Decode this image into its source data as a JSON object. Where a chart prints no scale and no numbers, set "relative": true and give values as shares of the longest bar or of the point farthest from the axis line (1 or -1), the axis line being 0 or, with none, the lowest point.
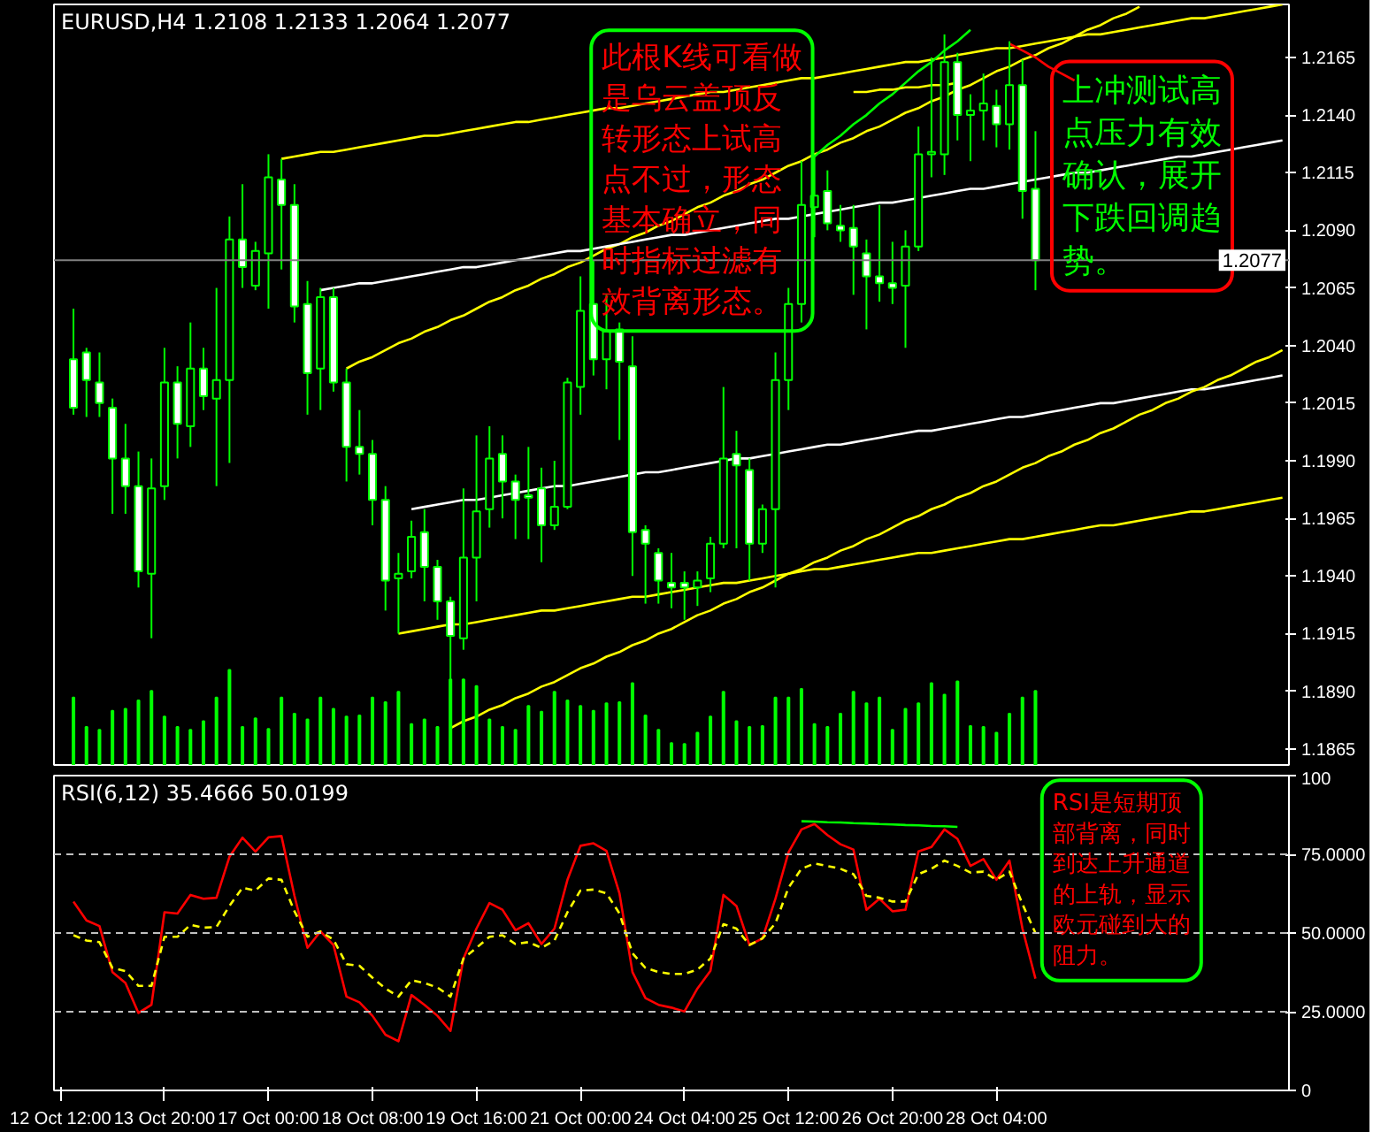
{
  "chart_data": [
    {
      "type": "candlestick",
      "title": "EURUSD,H4  1.2108 1.2133 1.2064 1.2077",
      "color": "#00ff00",
      "ohlc": [
        null,
        [
          1.2034,
          1.2056,
          1.201,
          1.2013
        ],
        [
          1.2037,
          1.2039,
          1.2009,
          1.2025
        ],
        [
          1.2024,
          1.2037,
          1.2009,
          1.2015
        ],
        [
          1.2013,
          1.2017,
          1.1967,
          1.1991
        ],
        [
          1.1991,
          1.2006,
          1.1967,
          1.1979
        ],
        [
          1.1979,
          1.1994,
          1.1935,
          1.1942
        ],
        [
          1.1941,
          1.1991,
          1.1913,
          1.1978
        ],
        [
          1.1979,
          1.2039,
          1.1973,
          1.2024
        ],
        [
          1.2024,
          1.2031,
          1.1991,
          1.2006
        ],
        [
          1.2005,
          1.205,
          1.1996,
          1.203
        ],
        [
          1.203,
          1.2039,
          1.2012,
          1.2018
        ],
        [
          1.2017,
          1.2065,
          1.1979,
          1.2025
        ],
        [
          1.2025,
          1.2096,
          1.1989,
          1.2086
        ],
        [
          1.2086,
          1.211,
          1.2065,
          1.2074
        ],
        [
          1.2066,
          1.2085,
          1.2064,
          1.2081
        ],
        [
          1.208,
          1.2123,
          1.2056,
          1.2113
        ],
        [
          1.2112,
          1.2121,
          1.2073,
          1.2101
        ],
        [
          1.2101,
          1.211,
          1.205,
          1.2057
        ],
        [
          1.2058,
          1.2068,
          1.201,
          1.2028
        ],
        [
          1.203,
          1.2065,
          1.2012,
          1.2061
        ],
        [
          1.2061,
          1.2065,
          1.202,
          1.2024
        ],
        [
          1.2024,
          1.203,
          1.1981,
          1.1996
        ],
        [
          1.1996,
          1.2012,
          1.1984,
          1.1993
        ],
        [
          1.1993,
          1.1999,
          1.1962,
          1.1973
        ],
        [
          1.1973,
          1.1979,
          1.1925,
          1.1938
        ],
        [
          1.1939,
          1.195,
          1.1915,
          1.1941
        ],
        [
          1.1942,
          1.1964,
          1.1939,
          1.1957
        ],
        [
          1.1959,
          1.1969,
          1.1929,
          1.1944
        ],
        [
          1.1944,
          1.1947,
          1.1921,
          1.1929
        ],
        [
          1.1929,
          1.1931,
          1.1874,
          1.1914
        ],
        [
          1.1913,
          1.1978,
          1.1908,
          1.1948
        ],
        [
          1.1948,
          1.2001,
          1.1929,
          1.1968
        ],
        [
          1.1969,
          1.2005,
          1.1961,
          1.1991
        ],
        [
          1.1993,
          1.2001,
          1.1965,
          1.1981
        ],
        [
          1.1981,
          1.1984,
          1.1956,
          1.1973
        ],
        [
          1.1975,
          1.1996,
          1.1956,
          1.1974
        ],
        [
          1.1978,
          1.1987,
          1.1946,
          1.1962
        ],
        [
          1.1962,
          1.199,
          1.196,
          1.197
        ],
        [
          1.197,
          1.2026,
          1.1969,
          1.2024
        ],
        [
          1.2022,
          1.207,
          1.201,
          1.2055
        ],
        [
          1.2058,
          1.2077,
          1.2027,
          1.2034
        ],
        [
          1.2034,
          1.2062,
          1.2021,
          1.2046
        ],
        [
          1.2047,
          1.205,
          1.1999,
          1.2033
        ],
        [
          1.2031,
          1.2044,
          1.194,
          1.1959
        ],
        [
          1.196,
          1.1962,
          1.1928,
          1.1954
        ],
        [
          1.195,
          1.1952,
          1.1928,
          1.1938
        ],
        [
          1.1937,
          1.195,
          1.1926,
          1.1935
        ],
        [
          1.1937,
          1.1942,
          1.1921,
          1.1935
        ],
        [
          1.1935,
          1.1942,
          1.1927,
          1.1938
        ],
        [
          1.1939,
          1.1957,
          1.1933,
          1.1954
        ],
        [
          1.1954,
          1.2022,
          1.1952,
          1.1991
        ],
        [
          1.1993,
          1.2003,
          1.1952,
          1.1988
        ],
        [
          1.1986,
          1.1991,
          1.1938,
          1.1954
        ],
        [
          1.1954,
          1.1971,
          1.195,
          1.1969
        ],
        [
          1.1969,
          1.2037,
          1.1935,
          1.2025
        ],
        [
          1.2025,
          1.2065,
          1.2012,
          1.2058
        ],
        [
          1.2058,
          1.212,
          1.205,
          1.2101
        ],
        [
          1.21,
          1.2122,
          1.2087,
          1.2105
        ],
        [
          1.2107,
          1.2116,
          1.209,
          1.2093
        ],
        [
          1.2092,
          1.2101,
          1.2085,
          1.209
        ],
        [
          1.2091,
          1.2101,
          1.2062,
          1.2083
        ],
        [
          1.208,
          1.2086,
          1.2047,
          1.207
        ],
        [
          1.207,
          1.2101,
          1.2059,
          1.2067
        ],
        [
          1.2067,
          1.2085,
          1.2058,
          1.2065
        ],
        [
          1.2066,
          1.209,
          1.2039,
          1.2083
        ],
        [
          1.2083,
          1.2135,
          1.2081,
          1.2123
        ],
        [
          1.2123,
          1.2165,
          1.2113,
          1.2124
        ],
        [
          1.2123,
          1.2175,
          1.2114,
          1.2163
        ],
        [
          1.2163,
          1.2167,
          1.2129,
          1.214
        ],
        [
          1.214,
          1.2149,
          1.212,
          1.2142
        ],
        [
          1.2142,
          1.2158,
          1.2129,
          1.2145
        ],
        [
          1.2144,
          1.2151,
          1.2126,
          1.2136
        ],
        [
          1.2136,
          1.2172,
          1.2125,
          1.2153
        ],
        [
          1.2153,
          1.2164,
          1.2095,
          1.2107
        ],
        [
          1.2108,
          1.2133,
          1.2064,
          1.2077
        ],
        null,
        null,
        null,
        null,
        null,
        null,
        null,
        null,
        null,
        null,
        null,
        null,
        null,
        null,
        null,
        null,
        null,
        null,
        null
      ],
      "series": [
        {
          "type": "line",
          "color": "#ffff00",
          "values": [
            null,
            null,
            null,
            null,
            null,
            null,
            null,
            null,
            null,
            null,
            null,
            null,
            null,
            null,
            null,
            null,
            null,
            1.2121,
            1.2122,
            1.2123,
            1.2124,
            1.2124,
            1.2125,
            1.2126,
            1.2127,
            1.2128,
            1.2129,
            1.213,
            1.2131,
            1.2131,
            1.2132,
            1.2133,
            1.2134,
            1.2135,
            1.2136,
            1.2137,
            1.2137,
            1.2138,
            1.2139,
            1.214,
            1.2141,
            1.2142,
            1.2143,
            1.2143,
            1.2144,
            1.2145,
            1.2146,
            1.2147,
            1.2148,
            1.2149,
            1.215,
            1.215,
            1.2151,
            1.2152,
            1.2153,
            1.2154,
            1.2155,
            1.2156,
            1.2156,
            1.2157,
            1.2158,
            1.2159,
            1.216,
            1.2161,
            1.2162,
            1.2163,
            1.2163,
            1.2164,
            1.2165,
            1.2166,
            1.2167,
            1.2168,
            1.2169,
            1.2169,
            1.217,
            1.2171,
            1.2172,
            1.2173,
            1.2174,
            1.2175,
            1.2175,
            1.2176,
            1.2177,
            1.2178,
            1.2179,
            1.218,
            1.2181,
            1.2182,
            1.2182,
            1.2183,
            1.2184,
            1.2185,
            1.2186,
            1.2187,
            1.2188
          ]
        },
        {
          "type": "line",
          "color": "#ffff00",
          "values": [
            null,
            null,
            null,
            null,
            null,
            null,
            null,
            null,
            null,
            null,
            null,
            null,
            null,
            null,
            null,
            null,
            null,
            null,
            null,
            null,
            null,
            null,
            1.203,
            1.2033,
            1.2035,
            1.2038,
            1.2041,
            1.2043,
            1.2046,
            1.2048,
            1.2051,
            1.2053,
            1.2056,
            1.2059,
            1.2061,
            1.2064,
            1.2066,
            1.2069,
            1.2071,
            1.2074,
            1.2076,
            1.2079,
            1.2082,
            1.2084,
            1.2087,
            1.2089,
            1.2092,
            1.2094,
            1.2097,
            1.21,
            1.2102,
            1.2105,
            1.2107,
            1.211,
            1.2112,
            1.2115,
            1.2118,
            1.212,
            1.2123,
            1.2125,
            1.2128,
            1.213,
            1.2133,
            1.2135,
            1.2138,
            1.2141,
            1.2143,
            1.2146,
            1.2148,
            1.2151,
            1.2153,
            1.2156,
            1.2159,
            1.2161,
            1.2164,
            1.2166,
            1.2169,
            1.2171,
            1.2174,
            1.2177,
            1.2179,
            1.2182,
            1.2184,
            1.2187,
            null,
            null,
            null,
            null,
            null,
            null,
            null,
            null,
            null,
            null,
            null
          ]
        },
        {
          "type": "line",
          "color": "#ffffff",
          "values": [
            null,
            null,
            null,
            null,
            null,
            null,
            null,
            null,
            null,
            null,
            null,
            null,
            null,
            null,
            null,
            null,
            null,
            null,
            null,
            null,
            1.2064,
            1.2065,
            1.2066,
            1.2067,
            1.2067,
            1.2068,
            1.2069,
            1.207,
            1.2071,
            1.2072,
            1.2073,
            1.2074,
            1.2074,
            1.2075,
            1.2076,
            1.2077,
            1.2078,
            1.2079,
            1.208,
            1.2081,
            1.2081,
            1.2082,
            1.2083,
            1.2084,
            1.2085,
            1.2086,
            1.2087,
            1.2088,
            1.2088,
            1.2089,
            1.209,
            1.2091,
            1.2092,
            1.2093,
            1.2094,
            1.2095,
            1.2095,
            1.2096,
            1.2097,
            1.2098,
            1.2099,
            1.21,
            1.2101,
            1.2102,
            1.2102,
            1.2103,
            1.2104,
            1.2105,
            1.2106,
            1.2107,
            1.2108,
            1.2108,
            1.2109,
            1.211,
            1.2111,
            1.2112,
            1.2113,
            1.2114,
            1.2115,
            1.2115,
            1.2116,
            1.2117,
            1.2118,
            1.2119,
            1.212,
            1.2121,
            1.2122,
            1.2122,
            1.2123,
            1.2124,
            1.2125,
            1.2126,
            1.2127,
            1.2128,
            1.2129
          ]
        },
        {
          "type": "line",
          "color": "#ffffff",
          "values": [
            null,
            null,
            null,
            null,
            null,
            null,
            null,
            null,
            null,
            null,
            null,
            null,
            null,
            null,
            null,
            null,
            null,
            null,
            null,
            null,
            null,
            null,
            null,
            null,
            null,
            null,
            null,
            1.1969,
            1.197,
            1.1971,
            1.1972,
            1.1973,
            1.1973,
            1.1974,
            1.1975,
            1.1976,
            1.1977,
            1.1978,
            1.1979,
            1.1979,
            1.198,
            1.1981,
            1.1982,
            1.1983,
            1.1984,
            1.1985,
            1.1985,
            1.1986,
            1.1987,
            1.1988,
            1.1989,
            1.199,
            1.1991,
            1.1991,
            1.1992,
            1.1993,
            1.1994,
            1.1995,
            1.1996,
            1.1997,
            1.1997,
            1.1998,
            1.1999,
            1.2,
            1.2001,
            1.2002,
            1.2003,
            1.2003,
            1.2004,
            1.2005,
            1.2006,
            1.2007,
            1.2008,
            1.2009,
            1.2009,
            1.201,
            1.2011,
            1.2012,
            1.2013,
            1.2014,
            1.2015,
            1.2015,
            1.2016,
            1.2017,
            1.2018,
            1.2019,
            1.202,
            1.2021,
            1.2021,
            1.2022,
            1.2023,
            1.2024,
            1.2025,
            1.2026,
            1.2027
          ]
        },
        {
          "type": "line",
          "color": "#ffff00",
          "values": [
            null,
            null,
            null,
            null,
            null,
            null,
            null,
            null,
            null,
            null,
            null,
            null,
            null,
            null,
            null,
            null,
            null,
            null,
            null,
            null,
            null,
            null,
            null,
            null,
            null,
            null,
            1.1915,
            1.1916,
            1.1917,
            1.1918,
            1.1919,
            1.1919,
            1.192,
            1.1921,
            1.1922,
            1.1923,
            1.1924,
            1.1925,
            1.1925,
            1.1926,
            1.1927,
            1.1928,
            1.1929,
            1.193,
            1.1931,
            1.1931,
            1.1932,
            1.1933,
            1.1934,
            1.1935,
            1.1936,
            1.1937,
            1.1937,
            1.1938,
            1.1939,
            1.194,
            1.1941,
            1.1942,
            1.1943,
            1.1943,
            1.1944,
            1.1945,
            1.1946,
            1.1947,
            1.1948,
            1.1949,
            1.195,
            1.195,
            1.1951,
            1.1952,
            1.1953,
            1.1954,
            1.1955,
            1.1956,
            1.1956,
            1.1957,
            1.1958,
            1.1959,
            1.196,
            1.1961,
            1.1962,
            1.1962,
            1.1963,
            1.1964,
            1.1965,
            1.1966,
            1.1967,
            1.1968,
            1.1968,
            1.1969,
            1.197,
            1.1971,
            1.1972,
            1.1973,
            1.1974
          ]
        },
        {
          "type": "line",
          "color": "#ffff00",
          "values": [
            null,
            null,
            null,
            null,
            null,
            null,
            null,
            null,
            null,
            null,
            null,
            null,
            null,
            null,
            null,
            null,
            null,
            null,
            null,
            null,
            null,
            null,
            null,
            null,
            null,
            null,
            null,
            null,
            null,
            null,
            1.1874,
            1.1877,
            1.1879,
            1.1882,
            1.1884,
            1.1887,
            1.1889,
            1.1892,
            1.1894,
            1.1897,
            1.19,
            1.1902,
            1.1905,
            1.1907,
            1.191,
            1.1912,
            1.1915,
            1.1917,
            1.192,
            1.1923,
            1.1925,
            1.1928,
            1.193,
            1.1933,
            1.1935,
            1.1938,
            1.1941,
            1.1943,
            1.1946,
            1.1948,
            1.1951,
            1.1953,
            1.1956,
            1.1958,
            1.1961,
            1.1964,
            1.1966,
            1.1969,
            1.1971,
            1.1974,
            1.1976,
            1.1979,
            1.1981,
            1.1984,
            1.1987,
            1.1989,
            1.1992,
            1.1994,
            1.1997,
            1.1999,
            1.2002,
            1.2004,
            1.2007,
            1.201,
            1.2012,
            1.2015,
            1.2017,
            1.202,
            1.2022,
            1.2025,
            1.2027,
            1.203,
            1.2033,
            1.2035,
            1.2038
          ]
        },
        {
          "type": "line",
          "color": "#00ff00",
          "values": [
            null,
            null,
            null,
            null,
            null,
            null,
            null,
            null,
            null,
            null,
            null,
            null,
            null,
            null,
            null,
            null,
            null,
            null,
            null,
            null,
            null,
            null,
            null,
            null,
            null,
            null,
            null,
            null,
            null,
            null,
            null,
            null,
            null,
            null,
            null,
            null,
            null,
            null,
            null,
            null,
            null,
            null,
            null,
            null,
            null,
            null,
            null,
            null,
            null,
            null,
            null,
            null,
            null,
            null,
            null,
            null,
            null,
            null,
            1.2122,
            1.2127,
            1.2131,
            1.2136,
            1.214,
            1.2145,
            1.2149,
            1.2154,
            1.2159,
            1.2163,
            1.2168,
            1.2172,
            1.2177,
            null,
            null,
            null,
            null,
            null,
            null,
            null,
            null,
            null,
            null,
            null,
            null,
            null,
            null,
            null,
            null,
            null,
            null,
            null,
            null,
            null,
            null,
            null,
            null
          ]
        },
        {
          "type": "line",
          "color": "#ffff00",
          "values": [
            null,
            null,
            null,
            null,
            null,
            null,
            null,
            null,
            null,
            null,
            null,
            null,
            null,
            null,
            null,
            null,
            null,
            null,
            null,
            null,
            null,
            null,
            null,
            null,
            null,
            null,
            null,
            null,
            null,
            null,
            null,
            null,
            null,
            null,
            null,
            null,
            null,
            null,
            null,
            null,
            null,
            null,
            null,
            null,
            null,
            null,
            null,
            null,
            null,
            null,
            null,
            null,
            null,
            null,
            null,
            null,
            null,
            null,
            null,
            null,
            null,
            1.215,
            1.215,
            1.2151,
            1.2151,
            1.2152,
            1.2152,
            1.2153,
            1.2153,
            1.2154,
            null,
            null,
            null,
            null,
            null,
            null,
            null,
            null,
            null,
            null,
            null,
            null,
            null,
            null,
            null,
            null,
            null,
            null,
            null,
            null,
            null,
            null,
            null,
            null,
            null
          ]
        },
        {
          "type": "line",
          "color": "#ff0000",
          "values": [
            null,
            null,
            null,
            null,
            null,
            null,
            null,
            null,
            null,
            null,
            null,
            null,
            null,
            null,
            null,
            null,
            null,
            null,
            null,
            null,
            null,
            null,
            null,
            null,
            null,
            null,
            null,
            null,
            null,
            null,
            null,
            null,
            null,
            null,
            null,
            null,
            null,
            null,
            null,
            null,
            null,
            null,
            null,
            null,
            null,
            null,
            null,
            null,
            null,
            null,
            null,
            null,
            null,
            null,
            null,
            null,
            null,
            null,
            null,
            null,
            null,
            null,
            null,
            null,
            null,
            null,
            null,
            null,
            null,
            null,
            null,
            null,
            null,
            1.2171,
            1.2168,
            1.2165,
            1.2161,
            1.2158,
            1.2155,
            null,
            null,
            null,
            null,
            null,
            null,
            null,
            null,
            null,
            null,
            null,
            null,
            null,
            null,
            null,
            null
          ]
        }
      ],
      "annotations": [
        "此根K线可看做是乌云盖顶反转形态上试高点不过，形态基本确立，同时指标过滤有效背离形态。",
        "上冲测试高点压力有效确认，展开下跌回调趋势。"
      ],
      "ref_lines": [
        {
          "axis": "y",
          "value": 1.2077,
          "label": "1.2077",
          "color": "#808080"
        }
      ],
      "ylim": [
        1.1858,
        1.2188
      ],
      "yticks": [
        {
          "value": 1.2165,
          "label": "1.2165"
        },
        {
          "value": 1.214,
          "label": "1.2140"
        },
        {
          "value": 1.2115,
          "label": "1.2115"
        },
        {
          "value": 1.209,
          "label": "1.2090"
        },
        {
          "value": 1.2065,
          "label": "1.2065"
        },
        {
          "value": 1.204,
          "label": "1.2040"
        },
        {
          "value": 1.2015,
          "label": "1.2015"
        },
        {
          "value": 1.199,
          "label": "1.1990"
        },
        {
          "value": 1.1965,
          "label": "1.1965"
        },
        {
          "value": 1.194,
          "label": "1.1940"
        },
        {
          "value": 1.1915,
          "label": "1.1915"
        },
        {
          "value": 1.189,
          "label": "1.1890"
        },
        {
          "value": 1.1865,
          "label": "1.1865"
        }
      ],
      "tick_labels": "y"
    },
    {
      "type": "bar",
      "relative": true,
      "color": "#00ff00",
      "tick_labels": false,
      "values": [
        null,
        0.71,
        0.4,
        0.37,
        0.57,
        0.59,
        0.68,
        0.78,
        0.51,
        0.4,
        0.37,
        0.46,
        0.71,
        1,
        0.4,
        0.49,
        0.38,
        0.71,
        0.54,
        0.48,
        0.71,
        0.59,
        0.51,
        0.52,
        0.71,
        0.66,
        0.77,
        0.43,
        0.48,
        0.4,
        0.9,
        0.9,
        0.83,
        0.48,
        0.4,
        0.37,
        0.62,
        0.56,
        0.77,
        0.68,
        0.62,
        0.57,
        0.65,
        0.66,
        0.86,
        0.52,
        0.37,
        0.23,
        0.22,
        0.34,
        0.51,
        0.77,
        0.46,
        0.4,
        0.41,
        0.71,
        0.71,
        0.8,
        0.43,
        0.4,
        0.54,
        0.77,
        0.65,
        0.71,
        0.37,
        0.59,
        0.65,
        0.86,
        0.74,
        0.88,
        0.41,
        0.4,
        0.34,
        0.54,
        0.71,
        0.78,
        null,
        null,
        null,
        null,
        null,
        null,
        null,
        null,
        null,
        null,
        null,
        null,
        null,
        null,
        null,
        null,
        null,
        null,
        null
      ]
    },
    {
      "type": "line",
      "title": "RSI(6,12) 35.4666 50.0199",
      "categories": [
        "12 Oct 12:00",
        null,
        null,
        null,
        null,
        null,
        null,
        null,
        "13 Oct 20:00",
        null,
        null,
        null,
        null,
        null,
        null,
        null,
        "17 Oct 00:00",
        null,
        null,
        null,
        null,
        null,
        null,
        null,
        "18 Oct 08:00",
        null,
        null,
        null,
        null,
        null,
        null,
        null,
        "19 Oct 16:00",
        null,
        null,
        null,
        null,
        null,
        null,
        null,
        "21 Oct 00:00",
        null,
        null,
        null,
        null,
        null,
        null,
        null,
        "24 Oct 04:00",
        null,
        null,
        null,
        null,
        null,
        null,
        null,
        "25 Oct 12:00",
        null,
        null,
        null,
        null,
        null,
        null,
        null,
        "26 Oct 20:00",
        null,
        null,
        null,
        null,
        null,
        null,
        null,
        "28 Oct 04:00",
        null,
        null,
        null,
        null,
        null,
        null,
        null,
        null,
        null,
        null,
        null,
        null,
        null,
        null,
        null,
        null,
        null,
        null,
        null,
        null,
        null,
        null
      ],
      "series": [
        {
          "color": "#ff0000",
          "line_style": "solid",
          "values": [
            null,
            60.0,
            54.0,
            52.2,
            37.6,
            34.1,
            24.6,
            27.2,
            56.6,
            56.2,
            62.1,
            60.9,
            61.2,
            74.2,
            80.3,
            75.9,
            80.4,
            80.8,
            61.8,
            45.3,
            50.5,
            46.2,
            29.8,
            28.0,
            23.7,
            17.7,
            15.6,
            30.3,
            27.2,
            23.7,
            18.9,
            41.9,
            51.4,
            59.5,
            57.4,
            50.9,
            53.1,
            46.5,
            51.4,
            66.9,
            77.7,
            78.5,
            76.1,
            62.6,
            37.6,
            29.3,
            27.2,
            26.3,
            25.1,
            32.4,
            38.0,
            62.1,
            58.6,
            46.2,
            48.3,
            60.9,
            75.6,
            82.9,
            84.6,
            81.1,
            78.2,
            76.5,
            57.4,
            60.9,
            56.9,
            57.4,
            75.9,
            77.3,
            82.9,
            79.9,
            71.3,
            73.5,
            66.9,
            73.0,
            51.4,
            35.5,
            null,
            null,
            null,
            null,
            null,
            null,
            null,
            null,
            null,
            null,
            null,
            null,
            null,
            null,
            null,
            null,
            null,
            null,
            null
          ]
        },
        {
          "color": "#ffff00",
          "line_style": "dashed",
          "values": [
            null,
            49.3,
            47.6,
            47.1,
            38.9,
            37.9,
            33.2,
            33.2,
            48.8,
            48.8,
            52.6,
            51.7,
            51.9,
            58.6,
            64.4,
            63.5,
            67.3,
            66.9,
            56.9,
            48.8,
            50.5,
            47.9,
            40.1,
            39.6,
            35.8,
            32.4,
            29.8,
            35.0,
            34.1,
            32.7,
            29.8,
            41.9,
            45.3,
            48.8,
            49.3,
            46.5,
            47.1,
            45.3,
            47.6,
            56.6,
            63.5,
            63.8,
            62.6,
            56.2,
            43.6,
            38.9,
            37.6,
            37.0,
            37.0,
            38.4,
            41.9,
            52.8,
            51.4,
            46.2,
            48.3,
            53.1,
            64.4,
            70.4,
            72.1,
            71.3,
            70.4,
            68.7,
            61.8,
            61.2,
            60.0,
            60.0,
            68.7,
            70.4,
            73.0,
            71.3,
            69.2,
            69.5,
            66.9,
            69.5,
            59.2,
            50.0,
            null,
            null,
            null,
            null,
            null,
            null,
            null,
            null,
            null,
            null,
            null,
            null,
            null,
            null,
            null,
            null,
            null,
            null,
            null
          ]
        },
        {
          "color": "#00ff00",
          "line_style": "solid",
          "values": [
            null,
            null,
            null,
            null,
            null,
            null,
            null,
            null,
            null,
            null,
            null,
            null,
            null,
            null,
            null,
            null,
            null,
            null,
            null,
            null,
            null,
            null,
            null,
            null,
            null,
            null,
            null,
            null,
            null,
            null,
            null,
            null,
            null,
            null,
            null,
            null,
            null,
            null,
            null,
            null,
            null,
            null,
            null,
            null,
            null,
            null,
            null,
            null,
            null,
            null,
            null,
            null,
            null,
            null,
            null,
            null,
            null,
            85.5,
            85.4,
            85.2,
            85.1,
            84.9,
            84.8,
            84.6,
            84.5,
            84.3,
            84.2,
            84.0,
            83.9,
            83.7,
            null,
            null,
            null,
            null,
            null,
            null,
            null,
            null,
            null,
            null,
            null,
            null,
            null,
            null,
            null,
            null,
            null,
            null,
            null,
            null,
            null,
            null,
            null,
            null,
            null
          ]
        }
      ],
      "annotations": [
        "RSI是短期顶部背离，同时到达上升通道的上轨，显示欧元碰到大的阻力。"
      ],
      "ref_lines": [
        {
          "axis": "y",
          "value": 75,
          "color": "#c0c0c0",
          "line_style": "dashed"
        },
        {
          "axis": "y",
          "value": 50,
          "color": "#c0c0c0",
          "line_style": "dashed"
        },
        {
          "axis": "y",
          "value": 25,
          "color": "#c0c0c0",
          "line_style": "dashed"
        }
      ],
      "ylim": [
        0,
        100
      ],
      "yticks": [
        100,
        {
          "value": 75,
          "label": "75.0000"
        },
        {
          "value": 50,
          "label": "50.0000"
        },
        {
          "value": 25,
          "label": "25.0000"
        },
        0
      ]
    }
  ]
}
